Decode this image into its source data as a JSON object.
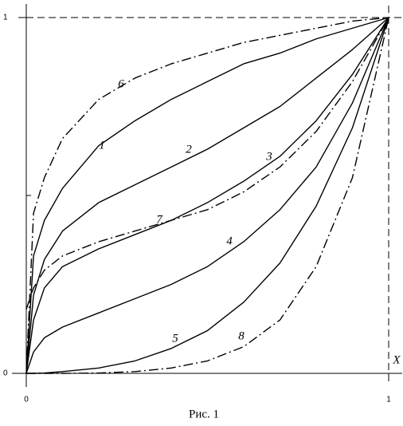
{
  "chart_data": {
    "type": "line",
    "x_label": "X",
    "caption": "Рис. 1",
    "x": [
      0,
      0.02,
      0.05,
      0.1,
      0.2,
      0.3,
      0.4,
      0.5,
      0.6,
      0.7,
      0.8,
      0.9,
      1
    ],
    "xlim": [
      0,
      1
    ],
    "ylim": [
      0,
      1
    ],
    "xticks": [
      0,
      1
    ],
    "yticks": [
      0,
      1
    ],
    "yminor_ticks": [
      0.5
    ],
    "series": [
      {
        "name": "1",
        "color": "#000",
        "style": "solid",
        "values": [
          0,
          0.33,
          0.43,
          0.52,
          0.64,
          0.71,
          0.77,
          0.82,
          0.87,
          0.9,
          0.94,
          0.97,
          1
        ]
      },
      {
        "name": "2",
        "color": "#000",
        "style": "solid",
        "values": [
          0,
          0.22,
          0.32,
          0.4,
          0.48,
          0.53,
          0.58,
          0.63,
          0.69,
          0.75,
          0.83,
          0.91,
          1
        ]
      },
      {
        "name": "3",
        "color": "#000",
        "style": "solid",
        "values": [
          0,
          0.15,
          0.24,
          0.3,
          0.35,
          0.39,
          0.43,
          0.48,
          0.54,
          0.61,
          0.71,
          0.84,
          1
        ]
      },
      {
        "name": "4",
        "color": "#000",
        "style": "solid",
        "values": [
          0,
          0.06,
          0.1,
          0.13,
          0.17,
          0.21,
          0.25,
          0.3,
          0.37,
          0.46,
          0.58,
          0.76,
          1
        ]
      },
      {
        "name": "5",
        "color": "#000",
        "style": "solid",
        "values": [
          0,
          0,
          0.001,
          0.005,
          0.015,
          0.035,
          0.07,
          0.12,
          0.2,
          0.31,
          0.47,
          0.69,
          1
        ]
      },
      {
        "name": "6",
        "color": "#000",
        "style": "dash-dot",
        "values": [
          0,
          0.45,
          0.55,
          0.66,
          0.77,
          0.83,
          0.87,
          0.9,
          0.93,
          0.95,
          0.97,
          0.99,
          1
        ]
      },
      {
        "name": "7",
        "color": "#000",
        "style": "dash-dot",
        "values": [
          0.18,
          0.24,
          0.29,
          0.33,
          0.37,
          0.4,
          0.43,
          0.46,
          0.51,
          0.58,
          0.68,
          0.82,
          1
        ]
      },
      {
        "name": "8",
        "color": "#000",
        "style": "dash-dot",
        "values": [
          0,
          0,
          0,
          0,
          0.001,
          0.005,
          0.015,
          0.035,
          0.075,
          0.15,
          0.3,
          0.55,
          1
        ]
      }
    ]
  }
}
